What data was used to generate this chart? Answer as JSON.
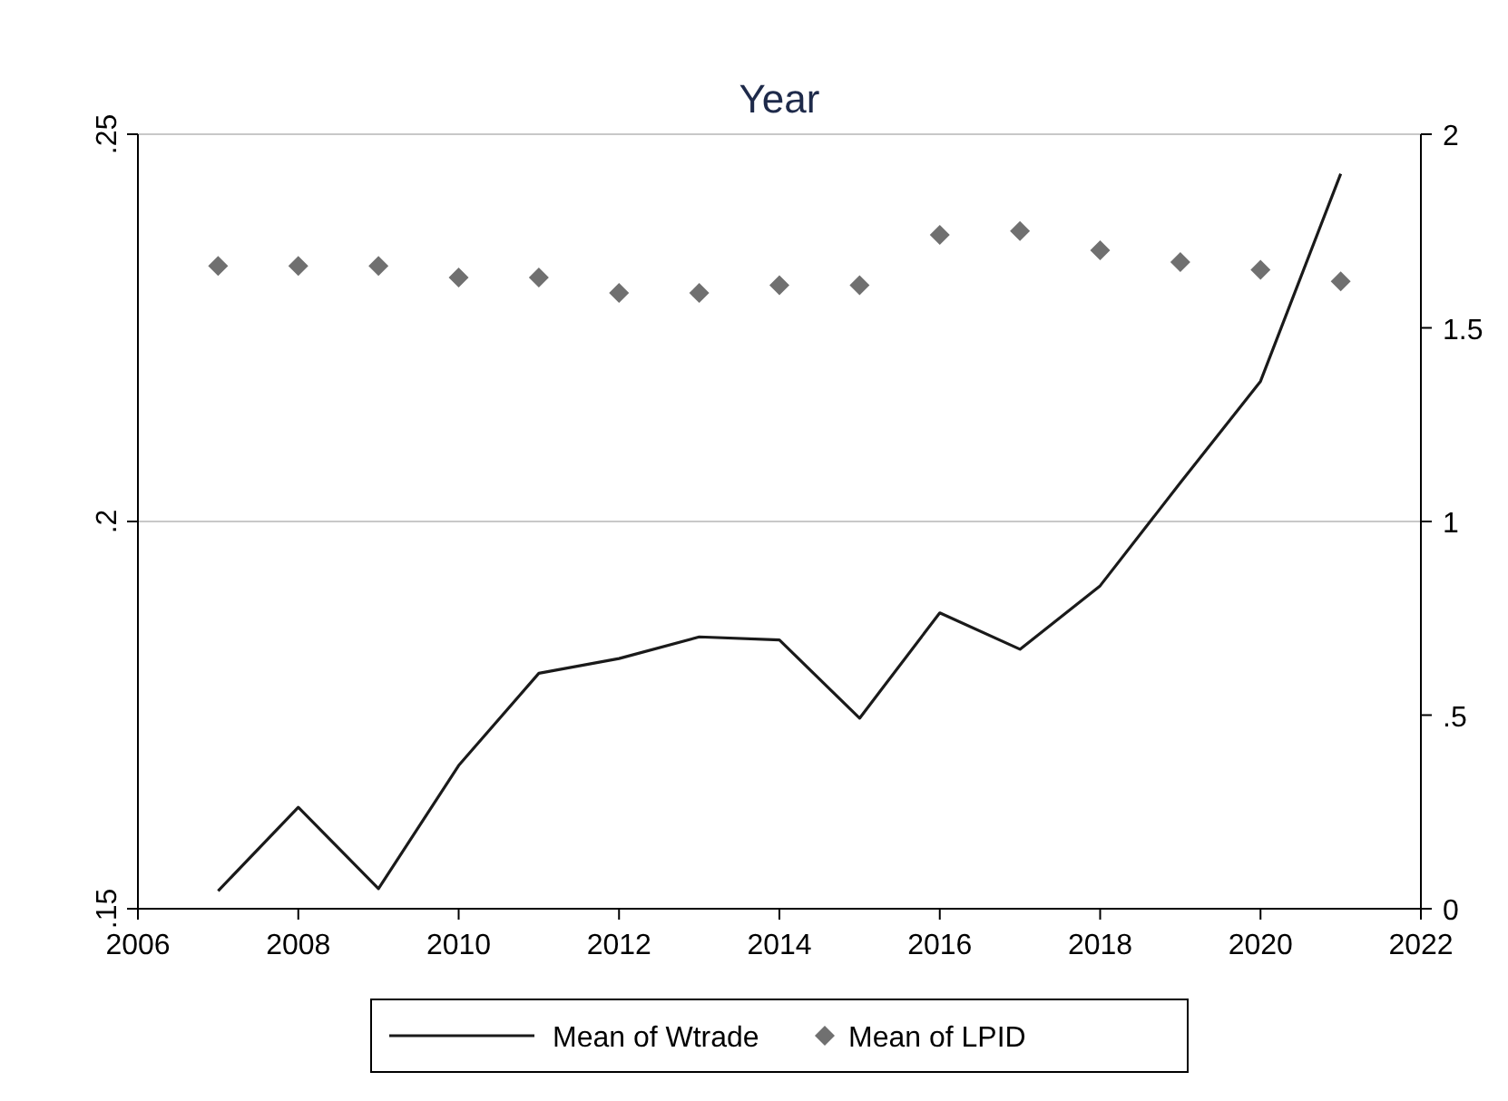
{
  "chart_data": {
    "type": "line",
    "title": "Year",
    "x": [
      2007,
      2008,
      2009,
      2010,
      2011,
      2012,
      2013,
      2014,
      2015,
      2016,
      2017,
      2018,
      2019,
      2020,
      2021
    ],
    "series": [
      {
        "name": "Mean of Wtrade",
        "color": "#1a1a1a",
        "marker": "none",
        "values": [
          0.1523,
          0.1631,
          0.1526,
          0.1685,
          0.1804,
          0.1823,
          0.1851,
          0.1847,
          0.1746,
          0.1882,
          0.1835,
          0.1917,
          0.205,
          0.2181,
          0.2449
        ]
      },
      {
        "name": "Mean of LPID",
        "type": "scatter",
        "axis": "y2",
        "color": "#707070",
        "marker": "diamond",
        "values": [
          1.66,
          1.66,
          1.66,
          1.63,
          1.63,
          1.59,
          1.59,
          1.61,
          1.61,
          1.74,
          1.75,
          1.7,
          1.67,
          1.65,
          1.62
        ]
      }
    ],
    "xlim": [
      2006,
      2022
    ],
    "xticks": [
      2006,
      2008,
      2010,
      2012,
      2014,
      2016,
      2018,
      2020,
      2022
    ],
    "ylim": [
      0.15,
      0.25
    ],
    "yticks": [
      {
        "value": 0.15,
        "label": ".15"
      },
      {
        "value": 0.2,
        "label": ".2"
      },
      {
        "value": 0.25,
        "label": ".25"
      }
    ],
    "y2lim": [
      0,
      2
    ],
    "y2ticks": [
      0,
      {
        "value": 0.5,
        "label": ".5"
      },
      1,
      1.5,
      2
    ],
    "grid": "y",
    "legend": "bottom"
  }
}
